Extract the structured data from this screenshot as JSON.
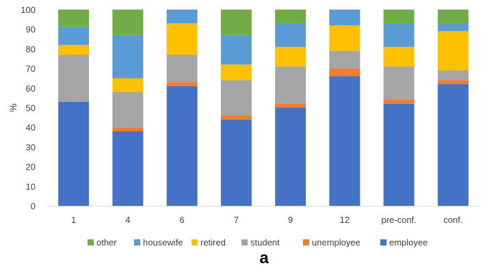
{
  "chart_data": {
    "type": "bar",
    "stacked": true,
    "categories": [
      "1",
      "4",
      "6",
      "7",
      "9",
      "12",
      "pre-conf.",
      "conf."
    ],
    "ylabel": "%",
    "ylim": [
      0,
      100
    ],
    "yticks": [
      0,
      10,
      20,
      30,
      40,
      50,
      60,
      70,
      80,
      90,
      100
    ],
    "grid": false,
    "legend_position": "bottom",
    "series": [
      {
        "name": "employee",
        "color": "#4472C4",
        "values": [
          53,
          38,
          61,
          44,
          50,
          66,
          52,
          62
        ]
      },
      {
        "name": "unemployee",
        "color": "#ED7D31",
        "values": [
          0,
          2,
          2,
          2,
          2,
          4,
          2,
          2
        ]
      },
      {
        "name": "student",
        "color": "#A5A5A5",
        "values": [
          24,
          18,
          14,
          18,
          19,
          9,
          17,
          5
        ]
      },
      {
        "name": "retired",
        "color": "#FFC000",
        "values": [
          5,
          7,
          16,
          8,
          10,
          13,
          10,
          20
        ]
      },
      {
        "name": "housewife",
        "color": "#5B9BD5",
        "values": [
          9,
          22,
          7,
          15,
          12,
          8,
          12,
          4
        ]
      },
      {
        "name": "other",
        "color": "#70AD47",
        "values": [
          9,
          13,
          0,
          13,
          7,
          0,
          7,
          7
        ]
      }
    ],
    "legend_order": [
      "other",
      "housewife",
      "retired",
      "student",
      "unemployee",
      "employee"
    ]
  },
  "panel_label": "a"
}
